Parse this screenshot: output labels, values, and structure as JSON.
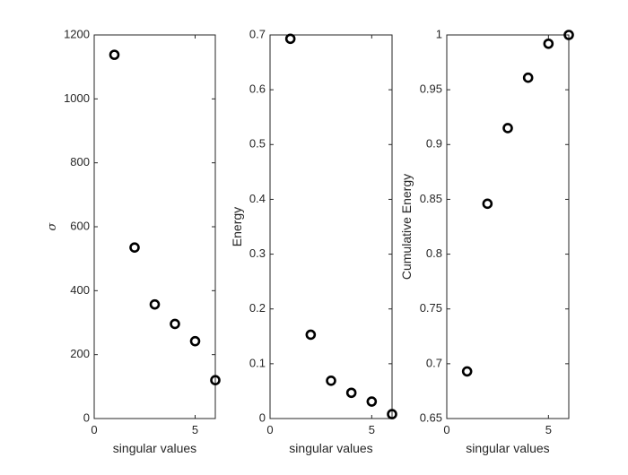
{
  "chart_data": [
    {
      "type": "scatter",
      "xlabel": "singular values",
      "ylabel": "σ",
      "xlim": [
        0,
        6
      ],
      "ylim": [
        0,
        1200
      ],
      "xticks": [
        0,
        5
      ],
      "yticks": [
        0,
        200,
        400,
        600,
        800,
        1000,
        1200
      ],
      "ytick_labels": [
        "0",
        "200",
        "400",
        "600",
        "800",
        "1000",
        "1200"
      ],
      "x": [
        1,
        2,
        3,
        4,
        5,
        6
      ],
      "y": [
        1138,
        535,
        357,
        296,
        242,
        120
      ]
    },
    {
      "type": "scatter",
      "xlabel": "singular values",
      "ylabel": "Energy",
      "xlim": [
        0,
        6
      ],
      "ylim": [
        0,
        0.7
      ],
      "xticks": [
        0,
        5
      ],
      "yticks": [
        0,
        0.1,
        0.2,
        0.3,
        0.4,
        0.5,
        0.6,
        0.7
      ],
      "ytick_labels": [
        "0",
        "0.1",
        "0.2",
        "0.3",
        "0.4",
        "0.5",
        "0.6",
        "0.7"
      ],
      "x": [
        1,
        2,
        3,
        4,
        5,
        6
      ],
      "y": [
        0.693,
        0.153,
        0.069,
        0.047,
        0.031,
        0.008
      ]
    },
    {
      "type": "scatter",
      "xlabel": "singular values",
      "ylabel": "Cumulative Energy",
      "xlim": [
        0,
        6
      ],
      "ylim": [
        0.65,
        1
      ],
      "xticks": [
        0,
        5
      ],
      "yticks": [
        0.65,
        0.7,
        0.75,
        0.8,
        0.85,
        0.9,
        0.95,
        1
      ],
      "ytick_labels": [
        "0.65",
        "0.7",
        "0.75",
        "0.8",
        "0.85",
        "0.9",
        "0.95",
        "1"
      ],
      "x": [
        1,
        2,
        3,
        4,
        5,
        6
      ],
      "y": [
        0.693,
        0.846,
        0.915,
        0.961,
        0.992,
        1.0
      ]
    }
  ],
  "colors": {
    "axis": "#262626",
    "marker": "#000000",
    "background": "#ffffff"
  }
}
